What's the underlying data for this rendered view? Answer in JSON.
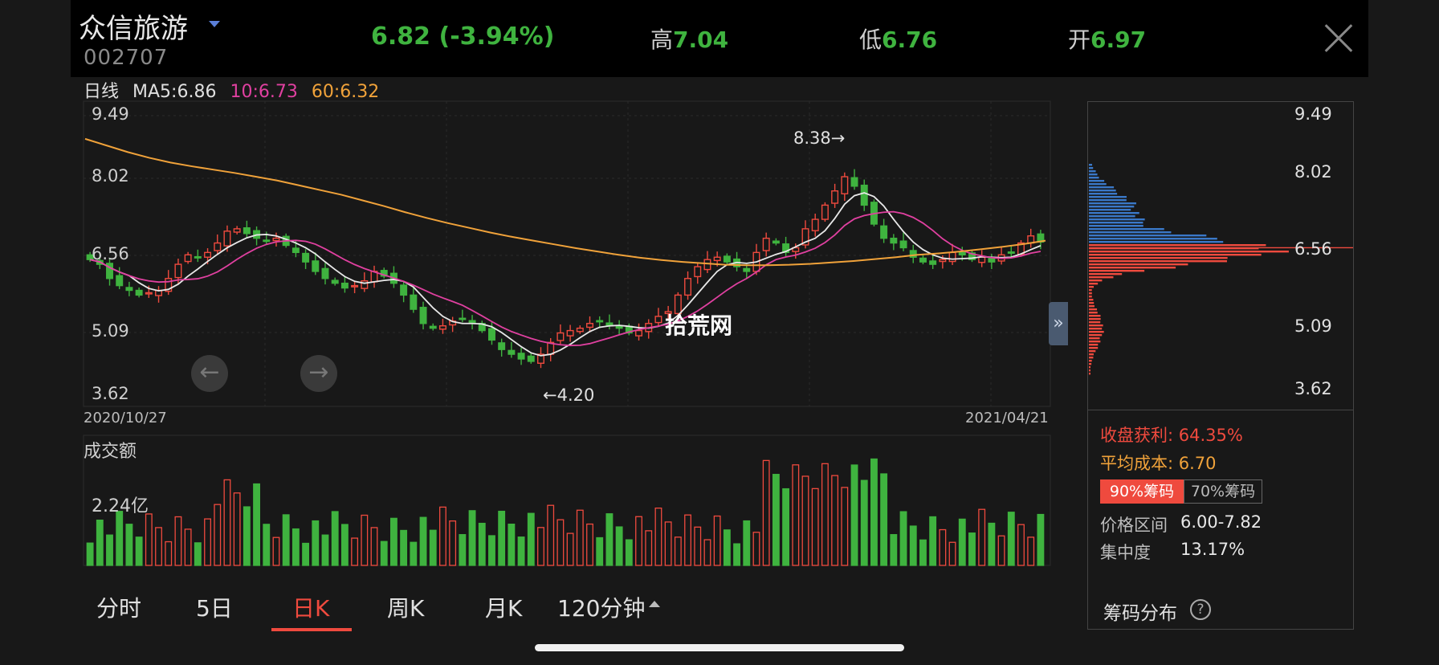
{
  "header": {
    "stock_name": "众信旅游",
    "stock_code": "002707",
    "price": "6.82",
    "change": "(-3.94%)",
    "high_label": "高",
    "high_value": "7.04",
    "low_label": "低",
    "low_value": "6.76",
    "open_label": "开",
    "open_value": "6.97"
  },
  "legend": {
    "period": "日线",
    "ma5": "MA5:6.86",
    "ma10": "10:6.73",
    "ma60": "60:6.32"
  },
  "main_chart": {
    "ticks": [
      "9.49",
      "8.02",
      "6.56",
      "5.09",
      "3.62"
    ],
    "start_date": "2020/10/27",
    "end_date": "2021/04/21",
    "high_marker": "8.38→",
    "low_marker": "←4.20"
  },
  "volume": {
    "title": "成交额",
    "scale": "2.24亿"
  },
  "tabs": [
    {
      "label": "分时"
    },
    {
      "label": "5日"
    },
    {
      "label": "日K"
    },
    {
      "label": "周K"
    },
    {
      "label": "月K"
    },
    {
      "label": "120分钟"
    }
  ],
  "chip_panel": {
    "ticks": [
      "9.49",
      "8.02",
      "6.56",
      "5.09",
      "3.62"
    ],
    "profit_label": "收盘获利:",
    "profit_value": "64.35%",
    "avg_cost_label": "平均成本:",
    "avg_cost_value": "6.70",
    "btn90": "90%筹码",
    "btn70": "70%筹码",
    "range_label": "价格区间",
    "range_value": "6.00-7.82",
    "conc_label": "集中度",
    "conc_value": "13.17%",
    "title": "筹码分布"
  },
  "watermark": "拾荒网",
  "colors": {
    "up": "#ef4a3e",
    "down": "#3fb33f",
    "ma5": "#e8e8e8",
    "ma10": "#e040a0",
    "ma60": "#f0a23a",
    "chip_above": "#3a78c8",
    "chip_below": "#ef4a3e"
  },
  "chart_data": {
    "type": "candlestick",
    "title": "",
    "ylim": [
      3.62,
      9.49
    ],
    "closes": [
      6.45,
      6.35,
      6.05,
      5.9,
      5.8,
      5.7,
      5.75,
      5.8,
      6.05,
      6.35,
      6.55,
      6.5,
      6.6,
      6.8,
      7.05,
      7.1,
      7.0,
      6.9,
      6.85,
      6.9,
      6.75,
      6.6,
      6.4,
      6.2,
      6.05,
      5.95,
      5.85,
      5.9,
      6.0,
      6.2,
      6.1,
      5.95,
      5.7,
      5.4,
      5.1,
      5.0,
      5.05,
      5.15,
      5.2,
      5.1,
      4.95,
      4.75,
      4.55,
      4.45,
      4.35,
      4.3,
      4.45,
      4.7,
      4.9,
      4.95,
      5.0,
      5.1,
      5.15,
      5.05,
      5.0,
      4.9,
      4.95,
      5.1,
      5.25,
      5.35,
      5.7,
      6.05,
      6.3,
      6.45,
      6.5,
      6.4,
      6.3,
      6.2,
      6.6,
      6.9,
      6.8,
      6.6,
      6.7,
      7.1,
      7.3,
      7.6,
      7.9,
      8.2,
      8.0,
      7.6,
      7.2,
      6.9,
      6.8,
      6.7,
      6.5,
      6.4,
      6.35,
      6.45,
      6.6,
      6.55,
      6.45,
      6.5,
      6.4,
      6.55,
      6.6,
      6.8,
      6.95,
      6.82
    ],
    "ma60": [
      9.0,
      8.86,
      8.72,
      8.6,
      8.5,
      8.42,
      8.35,
      8.28,
      8.2,
      8.12,
      8.02,
      7.92,
      7.82,
      7.7,
      7.58,
      7.45,
      7.33,
      7.22,
      7.12,
      7.02,
      6.93,
      6.85,
      6.77,
      6.69,
      6.62,
      6.55,
      6.49,
      6.44,
      6.4,
      6.37,
      6.34,
      6.33,
      6.33,
      6.34,
      6.36,
      6.39,
      6.42,
      6.46,
      6.5,
      6.55,
      6.58,
      6.62,
      6.67,
      6.72,
      6.78,
      6.85
    ],
    "volume_max": 3.6
  }
}
